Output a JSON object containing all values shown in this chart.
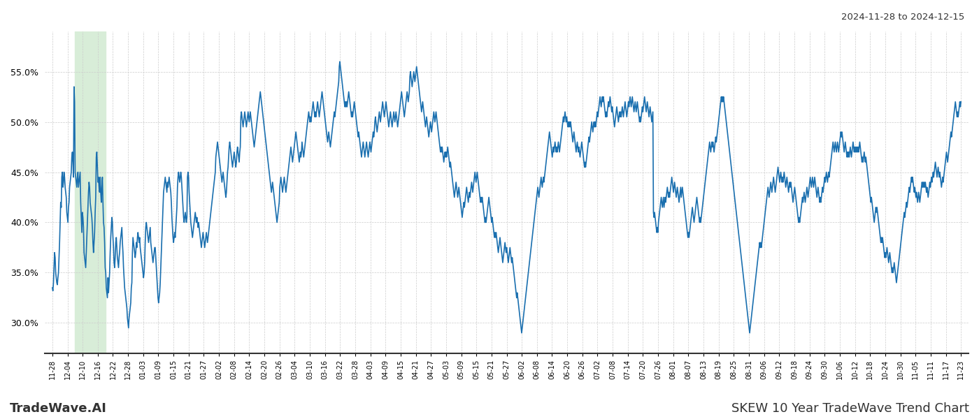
{
  "title_top_right": "2024-11-28 to 2024-12-15",
  "title_bottom_left": "TradeWave.AI",
  "title_bottom_right": "SKEW 10 Year TradeWave Trend Chart",
  "line_color": "#1a6faf",
  "line_width": 1.2,
  "background_color": "#ffffff",
  "grid_color": "#cccccc",
  "highlight_color": "#d8edd8",
  "ylim": [
    27.0,
    59.0
  ],
  "yticks": [
    30.0,
    35.0,
    40.0,
    45.0,
    50.0,
    55.0
  ],
  "xtick_labels": [
    "11-28",
    "12-04",
    "12-10",
    "12-16",
    "12-22",
    "12-28",
    "01-03",
    "01-09",
    "01-15",
    "01-21",
    "01-27",
    "02-02",
    "02-08",
    "02-14",
    "02-20",
    "02-26",
    "03-04",
    "03-10",
    "03-16",
    "03-22",
    "03-28",
    "04-03",
    "04-09",
    "04-15",
    "04-21",
    "04-27",
    "05-03",
    "05-09",
    "05-15",
    "05-21",
    "05-27",
    "06-02",
    "06-08",
    "06-14",
    "06-20",
    "06-26",
    "07-02",
    "07-08",
    "07-14",
    "07-20",
    "07-26",
    "08-01",
    "08-07",
    "08-13",
    "08-19",
    "08-25",
    "08-31",
    "09-06",
    "09-12",
    "09-18",
    "09-24",
    "09-30",
    "10-06",
    "10-12",
    "10-18",
    "10-24",
    "10-30",
    "11-05",
    "11-11",
    "11-17",
    "11-23"
  ],
  "highlight_xstart_label": "12-10",
  "highlight_xend_label": "12-22",
  "values": [
    33.5,
    33.2,
    34.0,
    35.5,
    37.0,
    36.5,
    35.0,
    34.5,
    34.0,
    33.8,
    34.5,
    35.0,
    36.5,
    38.0,
    40.0,
    42.0,
    41.5,
    44.5,
    45.0,
    43.5,
    44.0,
    45.0,
    44.5,
    43.5,
    43.0,
    42.5,
    41.0,
    40.5,
    40.0,
    41.5,
    42.0,
    43.5,
    44.0,
    44.5,
    45.0,
    46.5,
    47.0,
    46.0,
    44.5,
    53.5,
    52.0,
    45.0,
    44.5,
    44.0,
    43.5,
    44.5,
    45.0,
    43.5,
    44.0,
    44.5,
    45.0,
    42.0,
    40.5,
    39.0,
    41.0,
    40.5,
    39.5,
    37.0,
    36.5,
    36.0,
    35.5,
    37.0,
    38.5,
    40.0,
    41.5,
    43.0,
    44.0,
    43.5,
    42.0,
    41.5,
    41.0,
    40.5,
    39.5,
    38.0,
    37.0,
    38.0,
    39.0,
    41.0,
    42.5,
    46.5,
    47.0,
    45.5,
    44.0,
    44.5,
    43.5,
    43.0,
    44.5,
    43.0,
    42.0,
    43.5,
    44.5,
    42.0,
    40.0,
    39.5,
    38.0,
    35.5,
    35.0,
    33.5,
    33.0,
    32.5,
    34.5,
    33.0,
    34.0,
    35.0,
    37.0,
    38.5,
    39.5,
    40.5,
    40.0,
    38.5,
    37.5,
    36.0,
    35.5,
    36.5,
    38.0,
    38.5,
    37.5,
    36.5,
    36.0,
    35.5,
    36.5,
    37.0,
    38.0,
    38.5,
    39.0,
    39.5,
    38.0,
    37.0,
    35.5,
    34.5,
    33.5,
    33.0,
    32.5,
    32.0,
    31.5,
    30.5,
    30.0,
    29.5,
    30.5,
    31.0,
    31.5,
    32.0,
    33.5,
    34.0,
    37.0,
    38.5,
    38.0,
    37.5,
    37.0,
    36.5,
    37.0,
    38.0,
    37.5,
    38.5,
    39.0,
    38.5,
    38.0,
    38.5,
    37.5,
    37.0,
    36.5,
    36.0,
    35.5,
    35.0,
    34.5,
    35.0,
    36.0,
    38.0,
    39.5,
    40.0,
    39.5,
    39.0,
    38.5,
    38.0,
    38.5,
    39.0,
    39.5,
    38.0,
    37.5,
    37.0,
    36.5,
    36.0,
    36.5,
    37.0,
    37.5,
    37.5,
    36.5,
    35.5,
    34.5,
    33.5,
    32.5,
    32.0,
    32.5,
    33.0,
    34.0,
    35.5,
    37.0,
    38.5,
    40.0,
    41.5,
    43.0,
    43.5,
    44.0,
    44.5,
    44.0,
    43.5,
    43.0,
    44.0,
    43.5,
    44.0,
    44.5,
    44.0,
    43.5,
    43.0,
    42.0,
    40.5,
    39.5,
    38.5,
    38.0,
    38.5,
    39.0,
    38.5,
    39.5,
    40.5,
    41.5,
    43.5,
    44.5,
    45.0,
    44.5,
    44.0,
    44.5,
    45.0,
    44.5,
    43.5,
    42.5,
    41.5,
    40.5,
    40.0,
    40.5,
    41.0,
    40.5,
    40.0,
    40.5,
    44.5,
    45.0,
    44.5,
    43.0,
    42.0,
    41.0,
    40.0,
    39.5,
    39.0,
    38.5,
    39.0,
    39.5,
    40.0,
    40.5,
    41.0,
    40.5,
    40.0,
    40.5,
    40.0,
    39.5,
    40.0,
    39.5,
    39.0,
    38.5,
    38.0,
    37.5,
    38.0,
    38.5,
    39.0,
    38.5,
    38.0,
    37.5,
    38.0,
    38.5,
    39.0,
    38.5,
    38.0,
    38.5,
    39.0,
    39.5,
    40.0,
    40.5,
    41.0,
    41.5,
    42.0,
    42.5,
    43.0,
    43.5,
    44.0,
    44.5,
    45.0,
    46.5,
    47.0,
    47.5,
    48.0,
    47.5,
    47.0,
    46.5,
    46.0,
    45.5,
    45.0,
    44.5,
    44.0,
    44.5,
    45.0,
    44.5,
    44.0,
    43.5,
    43.0,
    42.5,
    43.0,
    44.0,
    45.0,
    45.5,
    46.5,
    47.5,
    48.0,
    47.5,
    47.0,
    46.5,
    46.0,
    45.5,
    46.0,
    46.5,
    47.0,
    46.5,
    46.0,
    45.5,
    46.0,
    47.0,
    47.5,
    47.0,
    46.5,
    46.0,
    47.0,
    47.5,
    50.5,
    51.0,
    50.5,
    50.0,
    49.5,
    50.0,
    50.5,
    51.0,
    50.5,
    50.0,
    49.5,
    50.0,
    50.5,
    51.0,
    50.5,
    50.0,
    50.5,
    51.0,
    50.5,
    50.0,
    49.5,
    49.0,
    48.5,
    48.0,
    47.5,
    48.0,
    48.5,
    49.0,
    49.5,
    50.0,
    50.5,
    51.0,
    51.5,
    52.0,
    52.5,
    53.0,
    52.5,
    52.0,
    51.5,
    51.0,
    50.5,
    50.0,
    49.5,
    49.0,
    48.5,
    48.0,
    47.5,
    47.0,
    46.5,
    46.0,
    45.5,
    45.0,
    44.5,
    44.0,
    43.5,
    43.0,
    43.5,
    44.0,
    43.5,
    43.0,
    42.5,
    42.0,
    41.5,
    41.0,
    40.5,
    40.0,
    40.5,
    41.0,
    41.5,
    42.0,
    43.5,
    44.0,
    44.5,
    44.0,
    43.5,
    43.0,
    43.5,
    44.0,
    44.5,
    44.0,
    43.5,
    43.0,
    43.5,
    44.0,
    44.5,
    45.0,
    45.5,
    46.0,
    46.5,
    47.0,
    47.5,
    47.0,
    46.5,
    46.0,
    46.5,
    47.0,
    47.5,
    48.0,
    48.5,
    49.0,
    48.5,
    48.0,
    47.5,
    47.0,
    46.5,
    46.0,
    46.5,
    47.0,
    46.5,
    47.0,
    48.0,
    47.5,
    47.0,
    46.5,
    47.0,
    47.5,
    48.0,
    48.5,
    49.0,
    49.5,
    50.0,
    50.5,
    51.0,
    50.5,
    50.0,
    50.5,
    50.0,
    50.5,
    51.0,
    51.5,
    52.0,
    51.5,
    51.0,
    50.5,
    51.0,
    50.5,
    51.0,
    51.5,
    52.0,
    51.5,
    51.0,
    50.5,
    51.0,
    51.5,
    52.0,
    52.5,
    53.0,
    52.5,
    52.0,
    51.5,
    51.0,
    50.5,
    50.0,
    49.5,
    49.0,
    48.5,
    48.0,
    48.5,
    49.0,
    48.5,
    48.0,
    47.5,
    48.0,
    48.5,
    49.0,
    49.5,
    50.0,
    50.5,
    51.0,
    50.5,
    51.0,
    51.5,
    52.0,
    52.5,
    53.0,
    53.5,
    54.0,
    55.5,
    56.0,
    55.5,
    55.0,
    54.5,
    54.0,
    53.5,
    53.0,
    52.5,
    52.0,
    51.5,
    52.0,
    51.5,
    52.0,
    51.5,
    52.0,
    52.5,
    53.0,
    52.5,
    52.0,
    51.5,
    51.0,
    50.5,
    51.0,
    50.5,
    51.0,
    51.5,
    52.0,
    51.5,
    51.0,
    50.5,
    50.0,
    49.5,
    49.0,
    48.5,
    49.0,
    48.5,
    48.0,
    47.5,
    47.0,
    46.5,
    47.0,
    47.5,
    48.0,
    47.5,
    47.0,
    46.5,
    47.0,
    47.5,
    48.0,
    47.5,
    47.0,
    46.5,
    47.0,
    47.5,
    48.0,
    47.5,
    47.0,
    47.5,
    48.0,
    48.5,
    49.0,
    48.5,
    49.0,
    50.0,
    50.5,
    50.0,
    49.5,
    49.0,
    49.5,
    50.0,
    50.5,
    51.0,
    50.5,
    50.0,
    50.5,
    51.0,
    51.5,
    52.0,
    51.5,
    51.0,
    50.5,
    51.0,
    51.5,
    52.0,
    51.5,
    51.0,
    50.5,
    50.0,
    49.5,
    50.0,
    50.5,
    51.0,
    50.5,
    50.0,
    49.5,
    50.0,
    50.5,
    51.0,
    50.5,
    50.0,
    50.5,
    51.0,
    50.5,
    50.0,
    49.5,
    50.0,
    50.5,
    51.0,
    51.5,
    52.0,
    52.5,
    53.0,
    52.5,
    52.0,
    51.5,
    51.0,
    50.5,
    51.0,
    51.5,
    52.0,
    52.5,
    53.0,
    52.5,
    52.0,
    52.5,
    53.0,
    54.5,
    55.0,
    54.5,
    54.0,
    53.5,
    54.0,
    54.5,
    55.0,
    54.5,
    54.0,
    54.5,
    55.0,
    55.5,
    55.0,
    54.5,
    54.0,
    53.5,
    53.0,
    52.5,
    52.0,
    51.5,
    51.0,
    51.5,
    52.0,
    51.5,
    51.0,
    50.5,
    50.0,
    49.5,
    50.0,
    50.5,
    50.0,
    49.5,
    49.0,
    48.5,
    49.0,
    49.5,
    50.0,
    49.5,
    49.0,
    49.5,
    50.0,
    50.5,
    51.0,
    50.5,
    50.0,
    50.5,
    51.0,
    50.5,
    50.0,
    49.5,
    49.0,
    48.5,
    48.0,
    47.5,
    47.0,
    47.5,
    47.0,
    47.5,
    47.0,
    46.5,
    46.0,
    46.5,
    47.0,
    46.5,
    47.0,
    46.5,
    47.0,
    47.5,
    47.0,
    46.5,
    46.0,
    45.5,
    46.0,
    45.5,
    45.0,
    44.5,
    44.0,
    43.5,
    43.0,
    42.5,
    43.0,
    43.5,
    44.0,
    43.5,
    43.0,
    42.5,
    43.0,
    43.5,
    43.0,
    42.5,
    42.0,
    41.5,
    41.0,
    40.5,
    41.0,
    41.5,
    42.0,
    41.5,
    42.0,
    42.5,
    43.0,
    43.5,
    43.0,
    42.5,
    42.0,
    42.5,
    43.0,
    42.5,
    43.0,
    43.5,
    44.0,
    43.5,
    43.0,
    43.5,
    44.0,
    44.5,
    45.0,
    44.5,
    44.0,
    44.5,
    45.0,
    44.5,
    44.0,
    43.5,
    43.0,
    42.5,
    42.0,
    42.5,
    42.0,
    42.5,
    42.0,
    41.5,
    41.0,
    40.5,
    40.0,
    40.5,
    40.0,
    40.5,
    41.0,
    41.5,
    42.0,
    42.5,
    42.0,
    41.5,
    41.0,
    40.5,
    40.0,
    40.5,
    40.0,
    39.5,
    39.0,
    38.5,
    39.0,
    38.5,
    39.0,
    38.5,
    38.0,
    37.5,
    37.0,
    37.5,
    38.0,
    38.5,
    38.0,
    37.5,
    37.0,
    36.5,
    36.0,
    36.5,
    37.0,
    37.5,
    38.0,
    37.5,
    37.0,
    37.5,
    37.0,
    36.5,
    36.0,
    36.5,
    37.0,
    37.5,
    37.0,
    36.5,
    36.0,
    36.5,
    36.0,
    35.5,
    35.0,
    34.5,
    34.0,
    33.5,
    33.0,
    32.5,
    33.0,
    32.5,
    32.0,
    31.5,
    31.0,
    30.5,
    30.0,
    29.5,
    29.0,
    29.5,
    30.0,
    30.5,
    31.0,
    31.5,
    32.0,
    32.5,
    33.0,
    33.5,
    34.0,
    34.5,
    35.0,
    35.5,
    36.0,
    36.5,
    37.0,
    37.5,
    38.0,
    38.5,
    39.0,
    39.5,
    40.0,
    40.5,
    41.0,
    41.5,
    42.0,
    42.5,
    43.0,
    43.5,
    43.0,
    42.5,
    43.0,
    43.5,
    44.0,
    44.5,
    44.0,
    43.5,
    44.0,
    44.5,
    44.0,
    44.5,
    45.0,
    45.5,
    46.0,
    46.5,
    47.0,
    47.5,
    48.0,
    48.5,
    49.0,
    48.5,
    48.0,
    47.5,
    47.0,
    46.5,
    47.0,
    47.5,
    47.0,
    47.5,
    48.0,
    47.5,
    47.0,
    47.5,
    47.0,
    47.5,
    48.0,
    47.5,
    47.0,
    47.5,
    48.0,
    48.5,
    49.0,
    49.5,
    50.0,
    50.5,
    50.0,
    50.5,
    51.0,
    50.5,
    50.0,
    50.5,
    50.0,
    49.5,
    50.0,
    49.5,
    50.0,
    49.5,
    50.0,
    49.5,
    49.0,
    48.5,
    48.0,
    48.5,
    49.0,
    48.5,
    48.0,
    47.5,
    47.0,
    47.5,
    48.0,
    47.5,
    47.0,
    47.5,
    47.0,
    46.5,
    47.0,
    47.5,
    48.0,
    47.5,
    47.0,
    46.5,
    46.0,
    45.5,
    46.0,
    45.5,
    46.0,
    46.5,
    47.0,
    47.5,
    48.0,
    48.5,
    48.0,
    48.5,
    49.0,
    49.5,
    50.0,
    49.5,
    49.0,
    49.5,
    50.0,
    49.5,
    50.0,
    49.5,
    50.0,
    50.5,
    51.0,
    50.5,
    51.0,
    51.5,
    52.0,
    52.5,
    52.0,
    51.5,
    52.0,
    52.5,
    52.0,
    52.5,
    52.0,
    51.5,
    51.0,
    50.5,
    51.0,
    50.5,
    51.0,
    51.5,
    52.0,
    51.5,
    52.0,
    52.5,
    52.0,
    51.5,
    51.0,
    51.5,
    51.0,
    50.5,
    50.0,
    49.5,
    50.0,
    50.5,
    51.0,
    51.5,
    51.0,
    50.5,
    50.0,
    50.5,
    51.0,
    50.5,
    51.0,
    50.5,
    51.0,
    51.5,
    51.0,
    50.5,
    51.0,
    51.5,
    52.0,
    51.5,
    51.0,
    50.5,
    51.0,
    51.5,
    52.0,
    51.5,
    52.0,
    52.5,
    52.0,
    51.5,
    52.0,
    52.5,
    52.0,
    51.5,
    51.0,
    51.5,
    52.0,
    51.5,
    51.0,
    51.5,
    52.0,
    51.5,
    51.0,
    50.5,
    50.0,
    50.5,
    50.0,
    50.5,
    51.0,
    51.5,
    51.0,
    51.5,
    52.0,
    52.5,
    52.0,
    51.5,
    51.0,
    51.5,
    52.0,
    51.5,
    51.0,
    50.5,
    51.0,
    51.5,
    51.0,
    50.5,
    50.0,
    50.5,
    51.0,
    41.0,
    40.5,
    41.0,
    40.5,
    40.0,
    39.5,
    39.0,
    39.5,
    39.0,
    40.0,
    40.5,
    41.0,
    41.5,
    42.0,
    42.5,
    42.0,
    41.5,
    42.0,
    42.5,
    41.5,
    42.0,
    42.5,
    42.0,
    42.5,
    43.0,
    43.5,
    43.0,
    42.5,
    43.0,
    42.5,
    43.0,
    43.5,
    44.0,
    44.5,
    44.0,
    43.5,
    43.0,
    43.5,
    44.0,
    43.5,
    43.0,
    42.5,
    43.0,
    43.5,
    43.0,
    42.5,
    42.0,
    42.5,
    43.0,
    43.5,
    42.5,
    43.0,
    43.5,
    43.0,
    42.5,
    42.0,
    41.5,
    41.0,
    40.5,
    40.0,
    39.5,
    39.0,
    38.5,
    39.0,
    38.5,
    39.0,
    39.5,
    40.0,
    40.5,
    41.0,
    41.5,
    41.0,
    40.5,
    40.0,
    40.5,
    41.0,
    41.5,
    42.0,
    42.5,
    42.0,
    41.5,
    41.0,
    40.5,
    40.0,
    40.5,
    40.0,
    40.5,
    41.0,
    41.5,
    42.0,
    42.5,
    43.0,
    43.5,
    44.0,
    44.5,
    45.0,
    45.5,
    46.0,
    46.5,
    47.0,
    47.5,
    48.0,
    47.5,
    47.0,
    47.5,
    48.0,
    47.5,
    48.0,
    47.5,
    47.0,
    47.5,
    48.0,
    48.5,
    48.0,
    48.5,
    49.0,
    49.5,
    50.0,
    50.5,
    51.0,
    51.5,
    52.0,
    52.5,
    52.0,
    52.5,
    52.0,
    52.5,
    52.0,
    51.5,
    51.0,
    50.5,
    50.0,
    49.5,
    49.0,
    48.5,
    48.0,
    47.5,
    47.0,
    46.5,
    46.0,
    45.5,
    45.0,
    44.5,
    44.0,
    43.5,
    43.0,
    42.5,
    42.0,
    41.5,
    41.0,
    40.5,
    40.0,
    39.5,
    39.0,
    38.5,
    38.0,
    37.5,
    37.0,
    36.5,
    36.0,
    35.5,
    35.0,
    34.5,
    34.0,
    33.5,
    33.0,
    32.5,
    32.0,
    31.5,
    31.0,
    30.5,
    30.0,
    29.5,
    29.0,
    29.5,
    30.0,
    30.5,
    31.0,
    31.5,
    32.0,
    32.5,
    33.0,
    33.5,
    34.0,
    34.5,
    35.0,
    35.5,
    36.0,
    36.5,
    37.0,
    37.5,
    38.0,
    37.5,
    38.0,
    37.5,
    38.0,
    38.5,
    39.0,
    39.5,
    40.0,
    40.5,
    41.0,
    41.5,
    42.0,
    42.5,
    43.0,
    43.5,
    43.0,
    42.5,
    43.0,
    43.5,
    44.0,
    43.5,
    43.0,
    43.5,
    44.0,
    44.5,
    44.0,
    43.5,
    43.0,
    43.5,
    44.0,
    44.5,
    45.0,
    45.5,
    45.0,
    44.5,
    44.0,
    44.5,
    45.0,
    44.5,
    44.0,
    44.5,
    44.0,
    44.5,
    45.0,
    44.5,
    44.0,
    43.5,
    44.0,
    44.5,
    44.0,
    43.5,
    43.0,
    43.5,
    44.0,
    43.5,
    44.0,
    43.5,
    43.0,
    42.5,
    42.0,
    42.5,
    43.0,
    43.5,
    43.0,
    42.5,
    42.0,
    41.5,
    41.0,
    40.5,
    40.0,
    40.5,
    40.0,
    40.5,
    41.0,
    41.5,
    42.0,
    42.5,
    42.0,
    42.5,
    43.0,
    42.5,
    42.0,
    42.5,
    43.0,
    43.5,
    43.0,
    42.5,
    43.0,
    43.5,
    44.0,
    44.5,
    44.0,
    43.5,
    44.0,
    44.5,
    44.0,
    43.5,
    44.0,
    44.5,
    44.0,
    43.5,
    43.0,
    42.5,
    43.0,
    43.5,
    43.0,
    42.5,
    42.0,
    42.5,
    42.0,
    42.5,
    43.0,
    43.5,
    43.0,
    43.5,
    44.0,
    44.5,
    44.0,
    44.5,
    45.0,
    44.5,
    44.0,
    44.5,
    45.0,
    44.5,
    45.0,
    45.5,
    46.0,
    46.5,
    47.0,
    47.5,
    48.0,
    47.5,
    47.0,
    47.5,
    48.0,
    47.5,
    47.0,
    47.5,
    48.0,
    47.5,
    47.0,
    47.5,
    48.0,
    48.5,
    49.0,
    48.5,
    49.0,
    48.5,
    48.0,
    47.5,
    47.0,
    47.5,
    48.0,
    47.5,
    47.0,
    46.5,
    47.0,
    46.5,
    47.0,
    46.5,
    47.0,
    47.5,
    47.0,
    46.5,
    47.0,
    47.5,
    48.0,
    47.5,
    47.0,
    47.5,
    47.0,
    47.5,
    47.0,
    47.5,
    47.0,
    47.5,
    47.0,
    47.5,
    48.0,
    47.5,
    47.0,
    46.5,
    46.0,
    46.5,
    46.0,
    46.5,
    47.0,
    46.5,
    46.0,
    46.5,
    46.0,
    45.5,
    45.0,
    44.5,
    44.0,
    43.5,
    43.0,
    42.5,
    42.0,
    42.5,
    42.0,
    41.5,
    41.0,
    40.5,
    40.0,
    40.5,
    41.0,
    41.5,
    41.0,
    41.5,
    41.0,
    40.5,
    40.0,
    39.5,
    39.0,
    38.5,
    38.0,
    38.5,
    38.0,
    38.5,
    38.0,
    37.5,
    37.0,
    36.5,
    37.0,
    36.5,
    37.0,
    37.5,
    37.0,
    36.5,
    36.0,
    36.5,
    37.0,
    36.5,
    36.0,
    35.5,
    35.0,
    35.5,
    35.0,
    35.5,
    36.0,
    35.5,
    35.0,
    34.5,
    34.0,
    34.5,
    35.0,
    35.5,
    36.0,
    36.5,
    37.0,
    37.5,
    38.0,
    38.5,
    39.0,
    39.5,
    40.0,
    40.5,
    41.0,
    40.5,
    41.0,
    41.5,
    42.0,
    41.5,
    42.0,
    42.5,
    43.0,
    43.5,
    43.0,
    43.5,
    44.0,
    44.5,
    44.0,
    44.5,
    44.0,
    43.5,
    43.0,
    43.5,
    43.0,
    42.5,
    43.0,
    42.5,
    42.0,
    42.5,
    43.0,
    42.5,
    42.0,
    42.5,
    43.0,
    43.5,
    44.0,
    43.5,
    44.0,
    43.5,
    44.0,
    43.5,
    44.0,
    43.5,
    43.0,
    43.5,
    43.0,
    42.5,
    43.0,
    43.5,
    44.0,
    43.5,
    44.0,
    44.5,
    44.0,
    44.5,
    45.0,
    44.5,
    45.0,
    45.5,
    46.0,
    45.5,
    45.0,
    44.5,
    45.0,
    45.5,
    45.0,
    44.5,
    45.0,
    44.5,
    44.0,
    43.5,
    44.0,
    44.5,
    44.0,
    44.5,
    45.0,
    45.5,
    46.0,
    46.5,
    47.0,
    46.5,
    46.0,
    46.5,
    47.0,
    47.5,
    48.0,
    48.5,
    49.0,
    48.5,
    49.0,
    49.5,
    50.0,
    50.5,
    51.0,
    51.5,
    52.0,
    51.5,
    51.0,
    50.5,
    51.0,
    50.5,
    51.0,
    51.5,
    52.0,
    51.5,
    52.0
  ]
}
